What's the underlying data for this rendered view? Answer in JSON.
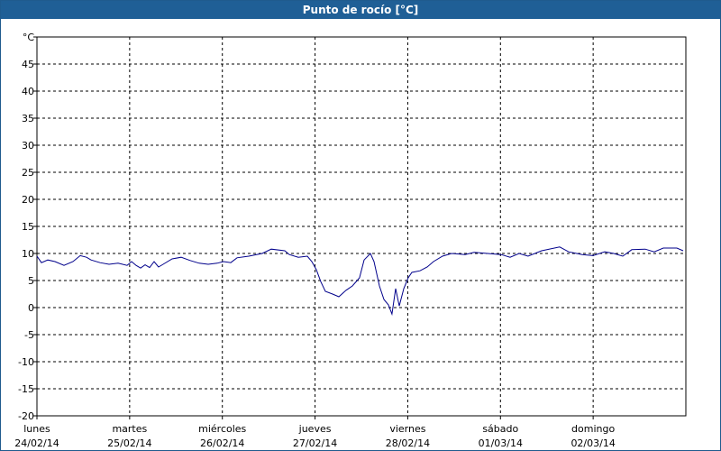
{
  "chart_data": {
    "type": "line",
    "title": "Punto de rocío [°C]",
    "x": [
      0,
      0.049,
      0.117,
      0.194,
      0.292,
      0.389,
      0.467,
      0.535,
      0.583,
      0.681,
      0.778,
      0.875,
      0.972,
      1.021,
      1.069,
      1.118,
      1.167,
      1.215,
      1.264,
      1.312,
      1.361,
      1.458,
      1.556,
      1.653,
      1.75,
      1.847,
      1.944,
      2.012,
      2.09,
      2.158,
      2.285,
      2.43,
      2.528,
      2.674,
      2.722,
      2.819,
      2.917,
      2.965,
      3.014,
      3.062,
      3.111,
      3.189,
      3.257,
      3.335,
      3.403,
      3.48,
      3.529,
      3.597,
      3.636,
      3.694,
      3.743,
      3.792,
      3.83,
      3.869,
      3.908,
      3.957,
      4.005,
      4.044,
      4.132,
      4.21,
      4.278,
      4.375,
      4.472,
      4.618,
      4.715,
      4.861,
      5.007,
      5.104,
      5.201,
      5.298,
      5.444,
      5.639,
      5.736,
      5.882,
      5.999,
      6.125,
      6.222,
      6.319,
      6.417,
      6.562,
      6.659,
      6.757,
      6.903,
      6.971
    ],
    "series": [
      {
        "name": "Punto de rocío",
        "color": "#00008b",
        "values": [
          9.5,
          8.3,
          8.8,
          8.5,
          7.8,
          8.5,
          9.6,
          9.3,
          8.8,
          8.3,
          8.0,
          8.2,
          7.8,
          8.5,
          7.8,
          7.3,
          7.9,
          7.4,
          8.5,
          7.5,
          8.0,
          9.0,
          9.3,
          8.7,
          8.2,
          8.0,
          8.2,
          8.5,
          8.3,
          9.2,
          9.5,
          10.0,
          10.8,
          10.5,
          9.8,
          9.3,
          9.5,
          8.5,
          7.0,
          4.8,
          3.0,
          2.5,
          2.0,
          3.2,
          4.0,
          5.5,
          8.8,
          10.0,
          8.5,
          4.0,
          1.5,
          0.5,
          -1.2,
          3.5,
          0.3,
          3.5,
          5.5,
          6.5,
          6.8,
          7.5,
          8.5,
          9.5,
          10.0,
          9.8,
          10.2,
          10.0,
          9.8,
          9.3,
          10.0,
          9.5,
          10.5,
          11.2,
          10.3,
          9.8,
          9.6,
          10.3,
          10.0,
          9.5,
          10.7,
          10.8,
          10.3,
          11.0,
          11.0,
          10.5
        ]
      }
    ],
    "xlim": [
      0,
      7
    ],
    "xticks": [
      {
        "value": 0,
        "label": "lunes",
        "date": "24/02/14"
      },
      {
        "value": 1,
        "label": "martes",
        "date": "25/02/14"
      },
      {
        "value": 2,
        "label": "miércoles",
        "date": "26/02/14"
      },
      {
        "value": 3,
        "label": "jueves",
        "date": "27/02/14"
      },
      {
        "value": 4,
        "label": "viernes",
        "date": "28/02/14"
      },
      {
        "value": 5,
        "label": "sábado",
        "date": "01/03/14"
      },
      {
        "value": 6,
        "label": "domingo",
        "date": "02/03/14"
      }
    ],
    "ylim": [
      -20,
      50
    ],
    "yticks": [
      -20,
      -15,
      -10,
      -5,
      0,
      5,
      10,
      15,
      20,
      25,
      30,
      35,
      40,
      45,
      {
        "value": 50,
        "label": "°C"
      }
    ],
    "grid": true
  }
}
